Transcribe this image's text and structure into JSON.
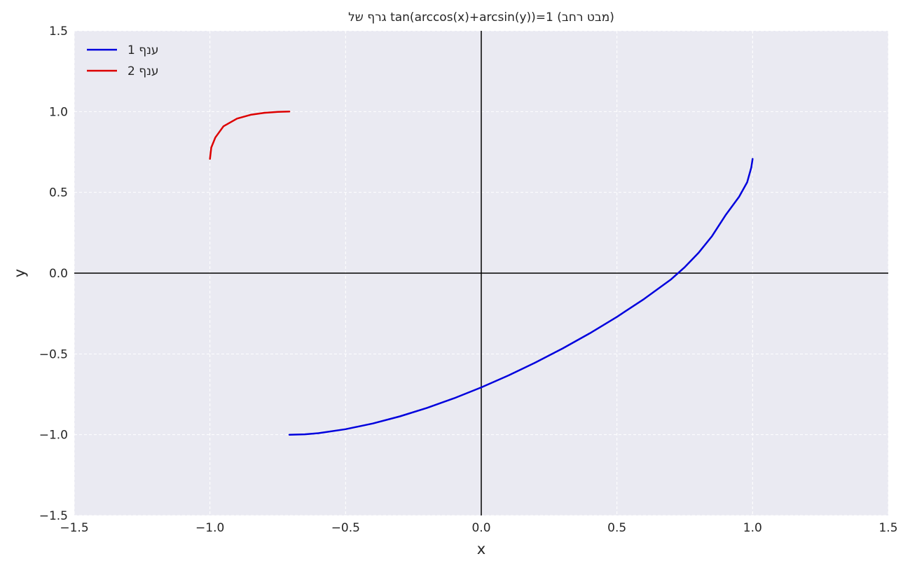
{
  "chart_data": {
    "type": "line",
    "title": "גרף של tan(arccos(x)+arcsin(y))=1 (מבט רחב)",
    "xlabel": "x",
    "ylabel": "y",
    "xlim": [
      -1.5,
      1.5
    ],
    "ylim": [
      -1.5,
      1.5
    ],
    "xticks": [
      -1.5,
      -1.0,
      -0.5,
      0.0,
      0.5,
      1.0,
      1.5
    ],
    "yticks": [
      -1.5,
      -1.0,
      -0.5,
      0.0,
      0.5,
      1.0,
      1.5
    ],
    "xtick_labels": [
      "−1.5",
      "−1.0",
      "−0.5",
      "0.0",
      "0.5",
      "1.0",
      "1.5"
    ],
    "ytick_labels": [
      "−1.5",
      "−1.0",
      "−0.5",
      "0.0",
      "0.5",
      "1.0",
      "1.5"
    ],
    "grid": true,
    "legend_position": "top-left",
    "background_color": "#eaeaf2",
    "grid_color": "#ffffff",
    "axis_line_color": "#000000",
    "series": [
      {
        "name": "ענף 1",
        "color": "#0000dd",
        "x": [
          -0.7071,
          -0.65,
          -0.6,
          -0.5,
          -0.4,
          -0.3,
          -0.2,
          -0.1,
          0.0,
          0.1,
          0.2,
          0.3,
          0.4,
          0.5,
          0.6,
          0.7,
          0.75,
          0.8,
          0.85,
          0.9,
          0.95,
          0.98,
          0.995,
          1.0
        ],
        "y": [
          -1.0,
          -0.9976,
          -0.9905,
          -0.9659,
          -0.9309,
          -0.8867,
          -0.8343,
          -0.7742,
          -0.7071,
          -0.6332,
          -0.5528,
          -0.4659,
          -0.3723,
          -0.2706,
          -0.16,
          -0.0378,
          0.0372,
          0.1243,
          0.2279,
          0.3582,
          0.4725,
          0.5632,
          0.6535,
          0.7071
        ]
      },
      {
        "name": "ענף 2",
        "color": "#dd0000",
        "x": [
          -1.0,
          -0.995,
          -0.98,
          -0.95,
          -0.9,
          -0.85,
          -0.8,
          -0.75,
          -0.7071
        ],
        "y": [
          0.7071,
          0.7778,
          0.8396,
          0.9089,
          0.9568,
          0.9802,
          0.9922,
          0.9983,
          1.0
        ]
      }
    ]
  }
}
